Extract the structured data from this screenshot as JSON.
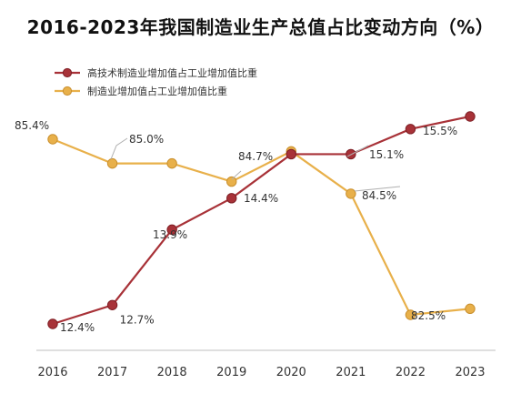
{
  "chart_data": {
    "type": "line",
    "title": "2016-2023年我国制造业生产总值占比变动方向（%）",
    "categories": [
      "2016",
      "2017",
      "2018",
      "2019",
      "2020",
      "2021",
      "2022",
      "2023"
    ],
    "series": [
      {
        "name": "高技术制造业增加值占工业增加值比重",
        "color": "#a83238",
        "values": [
          12.4,
          12.7,
          13.9,
          14.4,
          15.1,
          15.1,
          15.5,
          15.7
        ],
        "labels": [
          "12.4%",
          "12.7%",
          "13.9%",
          "14.4%",
          "",
          "15.1%",
          "15.5%",
          ""
        ]
      },
      {
        "name": "制造业增加值占工业增加值比重",
        "color": "#e8b04a",
        "values": [
          85.4,
          85.0,
          85.0,
          84.7,
          85.2,
          84.5,
          82.5,
          82.6
        ],
        "labels": [
          "85.4%",
          "85.0%",
          "",
          "84.7%",
          "",
          "84.5%",
          "82.5%",
          ""
        ]
      }
    ],
    "xlabel": "",
    "ylabel": "",
    "grid": false,
    "legend": "top-left"
  }
}
